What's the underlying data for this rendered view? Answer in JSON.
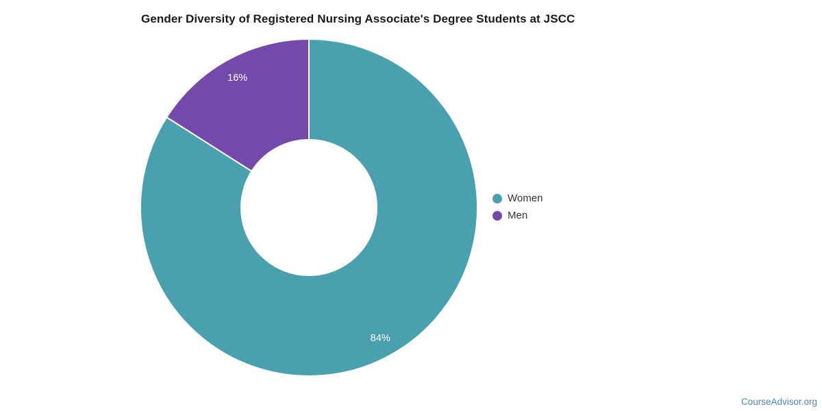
{
  "page": {
    "watermark": "CourseAdvisor.org"
  },
  "colors": {
    "background": "#ffffff",
    "title_text": "#1a1a1a",
    "legend_text": "#333333",
    "watermark_text": "#4e87b2",
    "slice_divider": "#ffffff"
  },
  "chart_data": {
    "type": "pie",
    "subtype": "donut",
    "title": "Gender Diversity of Registered Nursing Associate's Degree Students at JSCC",
    "categories": [
      "Women",
      "Men"
    ],
    "values": [
      84,
      16
    ],
    "slice_labels": [
      "84%",
      "16%"
    ],
    "colors": [
      "#4aa0af",
      "#7549ab"
    ],
    "slice_label_color": "#ffffff",
    "legend_position": "right",
    "start_angle_deg": 0,
    "direction": "clockwise",
    "inner_radius_ratio": 0.4,
    "grid": false
  }
}
